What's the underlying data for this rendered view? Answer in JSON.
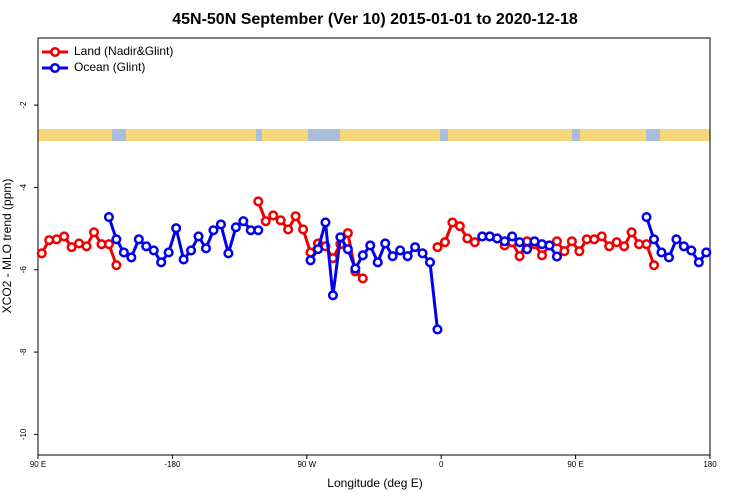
{
  "chart_data": {
    "type": "line",
    "title": "45N-50N September (Ver 10)   2015-01-01 to 2020-12-18",
    "xlabel": "Longitude (deg E)",
    "ylabel": "XCO2 - MLO trend (ppm)",
    "legend": "top-left",
    "xlim": [
      -270,
      180
    ],
    "xticks": [
      {
        "value": -270,
        "label": "90 E"
      },
      -180,
      {
        "value": -90,
        "label": "90 W"
      },
      0,
      {
        "value": 90,
        "label": "90 E"
      },
      180
    ],
    "ylim": [
      -10.5,
      -0.37
    ],
    "yticks": [
      -2,
      -4,
      -6,
      -8,
      -10
    ],
    "series": [
      {
        "name": "Land (Nadir&Glint)",
        "color": "#ee0000",
        "x": [
          -267.5,
          -262.5,
          -257.5,
          -252.5,
          -247.5,
          -242.5,
          -237.5,
          -232.5,
          -227.5,
          -222.5,
          -217.5,
          -212.5,
          -122.5,
          -117.5,
          -112.5,
          -107.5,
          -102.5,
          -97.5,
          -92.5,
          -87.5,
          -82.5,
          -77.5,
          -72.5,
          -67.5,
          -62.5,
          -57.5,
          -52.5,
          -47.5,
          -2.5,
          2.5,
          7.5,
          12.5,
          17.5,
          22.5,
          27.5,
          32.5,
          37.5,
          42.5,
          47.5,
          52.5,
          57.5,
          62.5,
          67.5,
          72.5,
          77.5,
          82.5,
          87.5,
          92.5,
          97.5,
          102.5,
          107.5,
          112.5,
          117.5,
          122.5,
          127.5,
          132.5,
          137.5,
          142.5
        ],
        "values": [
          -5.6,
          -5.28,
          -5.26,
          -5.19,
          -5.45,
          -5.36,
          -5.43,
          -5.09,
          -5.38,
          -5.38,
          -5.89,
          null,
          -4.34,
          -4.82,
          -4.68,
          -4.8,
          -5.02,
          -4.7,
          -5.02,
          -5.58,
          -5.36,
          -5.43,
          -5.72,
          -5.38,
          -5.11,
          -6.04,
          -6.21,
          null,
          -5.45,
          -5.33,
          -4.85,
          -4.94,
          -5.24,
          -5.33,
          -5.19,
          -5.19,
          -5.24,
          -5.41,
          -5.33,
          -5.67,
          -5.31,
          -5.38,
          -5.65,
          -5.41,
          -5.31,
          -5.55,
          -5.31,
          -5.55,
          -5.26,
          -5.26,
          -5.19,
          -5.43,
          -5.33,
          -5.43,
          -5.09,
          -5.38,
          -5.38,
          -5.89
        ]
      },
      {
        "name": "Ocean (Glint)",
        "color": "#0000ee",
        "x": [
          -222.5,
          -217.5,
          -212.5,
          -207.5,
          -202.5,
          -197.5,
          -192.5,
          -187.5,
          -182.5,
          -177.5,
          -172.5,
          -167.5,
          -162.5,
          -157.5,
          -152.5,
          -147.5,
          -142.5,
          -137.5,
          -132.5,
          -127.5,
          -122.5,
          -117.5,
          -87.5,
          -82.5,
          -77.5,
          -72.5,
          -67.5,
          -62.5,
          -57.5,
          -52.5,
          -47.5,
          -42.5,
          -37.5,
          -32.5,
          -27.5,
          -22.5,
          -17.5,
          -12.5,
          -7.5,
          -2.5,
          2.5,
          27.5,
          32.5,
          37.5,
          42.5,
          47.5,
          52.5,
          57.5,
          62.5,
          67.5,
          72.5,
          77.5,
          82.5,
          137.5,
          142.5,
          147.5,
          152.5,
          157.5,
          162.5,
          167.5,
          172.5,
          177.5
        ],
        "values": [
          -4.72,
          -5.26,
          -5.58,
          -5.7,
          -5.26,
          -5.43,
          -5.53,
          -5.82,
          -5.58,
          -4.99,
          -5.75,
          -5.53,
          -5.19,
          -5.48,
          -5.04,
          -4.9,
          -5.6,
          -4.97,
          -4.82,
          -5.04,
          -5.04,
          null,
          -5.77,
          -5.5,
          -4.85,
          -6.62,
          -5.21,
          -5.5,
          -5.97,
          -5.65,
          -5.41,
          -5.82,
          -5.36,
          -5.67,
          -5.53,
          -5.67,
          -5.45,
          -5.6,
          -5.82,
          -7.45,
          null,
          -5.19,
          -5.19,
          -5.24,
          -5.31,
          -5.19,
          -5.33,
          -5.5,
          -5.31,
          -5.38,
          -5.41,
          -5.68,
          null,
          -4.72,
          -5.26,
          -5.58,
          -5.7,
          -5.26,
          -5.43,
          -5.53,
          -5.82,
          -5.58
        ]
      }
    ]
  }
}
